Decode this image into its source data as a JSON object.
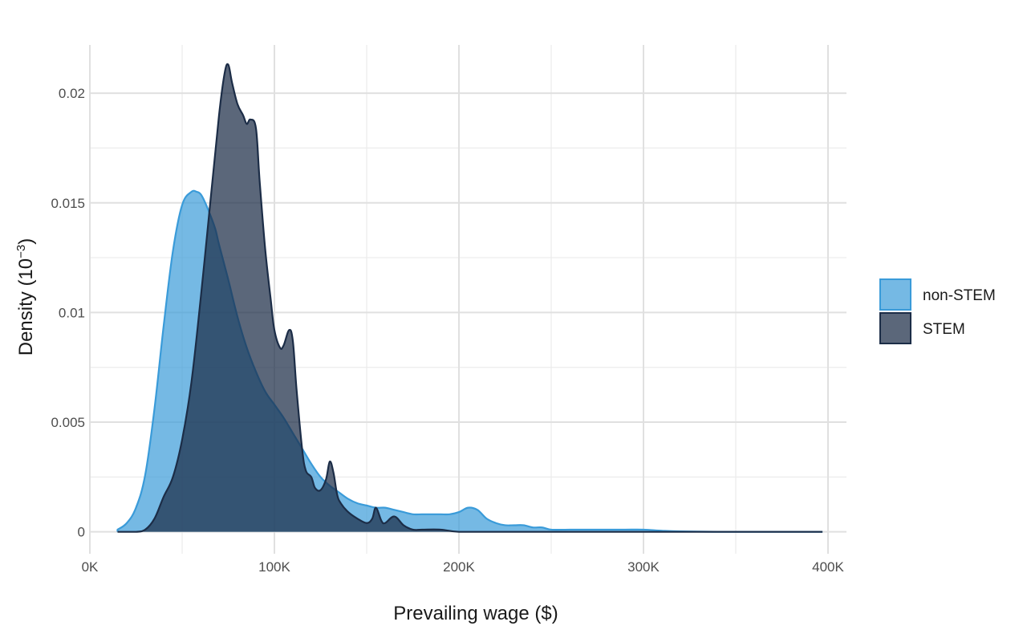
{
  "chart_data": {
    "type": "area",
    "subtype": "density",
    "title": "",
    "xlabel": "Prevailing wage ($)",
    "ylabel": "Density (10",
    "ylabel_sup": "−3",
    "ylabel_close": ")",
    "xlim": [
      0,
      410000
    ],
    "ylim": [
      -0.001,
      0.0222
    ],
    "x_ticks": [
      {
        "value": 0,
        "label": "0K"
      },
      {
        "value": 100000,
        "label": "100K"
      },
      {
        "value": 200000,
        "label": "200K"
      },
      {
        "value": 300000,
        "label": "300K"
      },
      {
        "value": 400000,
        "label": "400K"
      }
    ],
    "y_ticks": [
      {
        "value": 0,
        "label": "0"
      },
      {
        "value": 0.005,
        "label": "0.005"
      },
      {
        "value": 0.01,
        "label": "0.01"
      },
      {
        "value": 0.015,
        "label": "0.015"
      },
      {
        "value": 0.02,
        "label": "0.02"
      }
    ],
    "grid": true,
    "legend_position": "right",
    "series": [
      {
        "name": "non-STEM",
        "fill": "#3a9bd9",
        "fill_opacity": 0.7,
        "stroke": "#3a9bd9",
        "x": [
          15000,
          20000,
          25000,
          30000,
          35000,
          40000,
          45000,
          50000,
          55000,
          58000,
          60000,
          62000,
          65000,
          68000,
          70000,
          75000,
          80000,
          85000,
          90000,
          95000,
          100000,
          105000,
          110000,
          115000,
          120000,
          125000,
          130000,
          135000,
          140000,
          145000,
          150000,
          155000,
          160000,
          165000,
          170000,
          175000,
          180000,
          185000,
          190000,
          195000,
          200000,
          205000,
          210000,
          215000,
          220000,
          225000,
          230000,
          235000,
          240000,
          245000,
          250000,
          260000,
          270000,
          280000,
          290000,
          300000,
          310000,
          320000,
          340000,
          360000,
          380000,
          397000
        ],
        "y": [
          0.0001,
          0.0004,
          0.0011,
          0.0026,
          0.0056,
          0.0094,
          0.0128,
          0.0149,
          0.0155,
          0.0155,
          0.0154,
          0.0151,
          0.0145,
          0.0138,
          0.0131,
          0.0115,
          0.0098,
          0.0084,
          0.0073,
          0.0064,
          0.0058,
          0.0052,
          0.0045,
          0.0038,
          0.0031,
          0.0025,
          0.0021,
          0.0018,
          0.0015,
          0.0013,
          0.0012,
          0.0011,
          0.0011,
          0.001,
          0.0009,
          0.0008,
          0.0008,
          0.0008,
          0.0008,
          0.0008,
          0.0009,
          0.0011,
          0.001,
          0.0006,
          0.0004,
          0.0003,
          0.0003,
          0.0003,
          0.0002,
          0.0002,
          0.0001,
          0.0001,
          0.0001,
          0.0001,
          0.0001,
          0.0001,
          5e-05,
          2e-05,
          0.0,
          0.0,
          0.0,
          0.0
        ]
      },
      {
        "name": "STEM",
        "fill": "#1c2d47",
        "fill_opacity": 0.72,
        "stroke": "#1c2d47",
        "x": [
          15000,
          25000,
          30000,
          35000,
          40000,
          45000,
          50000,
          55000,
          60000,
          65000,
          70000,
          73000,
          75000,
          77000,
          80000,
          83000,
          85000,
          87000,
          90000,
          92000,
          95000,
          98000,
          100000,
          103000,
          105000,
          108000,
          110000,
          112000,
          115000,
          117000,
          120000,
          122000,
          125000,
          128000,
          130000,
          132000,
          134000,
          136000,
          140000,
          145000,
          150000,
          153000,
          155000,
          158000,
          160000,
          165000,
          170000,
          175000,
          180000,
          190000,
          200000,
          220000,
          250000,
          300000,
          350000,
          397000
        ],
        "y": [
          0.0,
          0.0,
          0.0001,
          0.0006,
          0.0016,
          0.0025,
          0.0042,
          0.0068,
          0.0106,
          0.0148,
          0.019,
          0.0209,
          0.0213,
          0.0205,
          0.0195,
          0.019,
          0.0186,
          0.0188,
          0.0184,
          0.016,
          0.0129,
          0.0106,
          0.0092,
          0.0084,
          0.0085,
          0.0092,
          0.0087,
          0.0065,
          0.0038,
          0.0028,
          0.0025,
          0.002,
          0.0019,
          0.0024,
          0.0032,
          0.0027,
          0.0017,
          0.0013,
          0.0009,
          0.0006,
          0.0004,
          0.0006,
          0.0011,
          0.0005,
          0.0004,
          0.0007,
          0.0003,
          0.0001,
          0.0001,
          0.0001,
          0.0,
          0.0,
          0.0,
          0.0,
          0.0,
          0.0
        ]
      }
    ]
  }
}
